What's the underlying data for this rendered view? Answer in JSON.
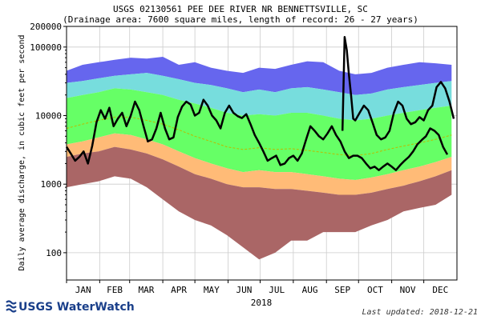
{
  "chart_data": {
    "type": "area",
    "title": "USGS 02130561 PEE DEE RIVER NR BENNETTSVILLE, SC",
    "subtitle": "(Drainage area: 7600 square miles, length of record: 26 - 27 years)",
    "ylabel": "Daily average discharge, in cubic feet per second",
    "xlabel": "2018",
    "yscale": "log",
    "ylim": [
      40,
      200000
    ],
    "yticks": [
      "200000",
      "100000",
      "10000",
      "1000",
      "100"
    ],
    "ytick_values": [
      200000,
      100000,
      10000,
      1000,
      100
    ],
    "months": [
      "JAN",
      "FEB",
      "MAR",
      "APR",
      "MAY",
      "JUN",
      "JUL",
      "AUG",
      "SEP",
      "OCT",
      "NOV",
      "DEC"
    ],
    "grid": true,
    "day_start": 0,
    "day_end": 365,
    "colors": {
      "band_max": "#6666ee",
      "band_p90": "#77dddd",
      "band_p75": "#66ff66",
      "band_p25": "#ffbb77",
      "band_p10": "#aa6666",
      "median": "#bbbb00",
      "observed": "#000000"
    },
    "x": [
      0,
      15,
      30,
      45,
      60,
      75,
      90,
      105,
      120,
      135,
      150,
      165,
      180,
      195,
      210,
      225,
      240,
      255,
      270,
      285,
      300,
      315,
      330,
      345,
      360
    ],
    "percentiles": {
      "max": [
        45000,
        55000,
        60000,
        65000,
        70000,
        68000,
        72000,
        55000,
        60000,
        50000,
        45000,
        42000,
        50000,
        48000,
        55000,
        62000,
        60000,
        45000,
        40000,
        42000,
        50000,
        55000,
        60000,
        58000,
        55000
      ],
      "p90": [
        30000,
        32000,
        35000,
        38000,
        40000,
        42000,
        38000,
        34000,
        30000,
        28000,
        25000,
        22000,
        24000,
        22000,
        25000,
        26000,
        24000,
        22000,
        20000,
        21000,
        24000,
        26000,
        28000,
        30000,
        32000
      ],
      "p75": [
        18000,
        20000,
        22000,
        25000,
        24000,
        22000,
        20000,
        17000,
        15000,
        13000,
        11000,
        10000,
        10500,
        10000,
        11000,
        11000,
        10000,
        9000,
        8500,
        9000,
        10000,
        11000,
        12000,
        13000,
        14000
      ],
      "median": [
        6500,
        7500,
        8500,
        9500,
        9500,
        8500,
        7500,
        6200,
        5000,
        4200,
        3500,
        3200,
        3400,
        3200,
        3300,
        3100,
        2900,
        2700,
        2600,
        2800,
        3200,
        3600,
        4000,
        4500,
        5200
      ],
      "p25": [
        3800,
        4200,
        4800,
        5500,
        5200,
        4500,
        3800,
        3000,
        2400,
        2000,
        1700,
        1500,
        1600,
        1500,
        1500,
        1400,
        1300,
        1200,
        1150,
        1250,
        1400,
        1600,
        1800,
        2100,
        2500
      ],
      "p10": [
        2500,
        2800,
        3000,
        3500,
        3200,
        2800,
        2300,
        1800,
        1400,
        1200,
        1000,
        900,
        900,
        850,
        850,
        800,
        750,
        700,
        700,
        750,
        850,
        950,
        1100,
        1300,
        1600
      ],
      "min": [
        900,
        1000,
        1100,
        1300,
        1200,
        900,
        600,
        400,
        300,
        250,
        180,
        120,
        80,
        100,
        150,
        150,
        200,
        200,
        200,
        250,
        300,
        400,
        450,
        500,
        700
      ]
    },
    "series": [
      {
        "x": [
          0,
          4,
          8,
          12,
          16,
          20,
          24,
          28,
          32,
          36,
          40,
          44,
          48,
          52,
          56,
          60,
          64,
          68,
          72,
          76,
          80,
          84,
          88,
          92,
          96,
          100,
          104,
          108,
          112,
          116,
          120,
          124,
          128,
          132,
          136,
          140,
          144,
          148,
          152,
          156,
          160,
          164,
          168,
          172,
          176,
          180,
          184,
          188,
          192,
          196,
          200,
          204,
          208,
          212,
          216,
          220,
          224,
          228,
          232,
          236,
          240,
          244,
          248,
          252,
          256,
          260,
          264,
          268,
          272,
          276,
          280,
          284,
          288,
          292,
          296,
          300,
          304,
          308,
          312,
          316,
          320,
          324,
          328,
          332,
          336,
          340,
          344,
          348,
          352,
          356
        ],
        "values": [
          3500,
          2800,
          2200,
          2500,
          3000,
          2000,
          3600,
          8000,
          12000,
          9000,
          13000,
          7000,
          9000,
          11000,
          7000,
          10000,
          16000,
          12000,
          7000,
          4200,
          4500,
          6500,
          11000,
          6500,
          4500,
          4800,
          9500,
          13500,
          16000,
          14500,
          10000,
          11000,
          17000,
          14000,
          10000,
          8500,
          6500,
          11000,
          14000,
          11000,
          9800,
          9200,
          10500,
          7500,
          5200,
          4000,
          3000,
          2200,
          2400,
          2600,
          1900,
          2000,
          2400,
          2600,
          2200,
          2800,
          4500,
          7000,
          6000,
          5000,
          4500,
          5500,
          7000,
          5200,
          4200,
          3000,
          2400,
          2600,
          2600,
          2400,
          2000,
          1700,
          1800,
          1600,
          1800,
          2000,
          1800,
          1600,
          1900,
          2200,
          2500,
          3000,
          3800,
          4400,
          5000,
          6500,
          6000,
          5200,
          3500,
          2700
        ]
      },
      {
        "x": [
          258,
          260,
          262,
          264,
          266,
          268,
          270,
          274,
          278,
          282,
          286,
          290,
          294,
          298,
          302,
          306,
          310,
          314,
          318,
          322,
          326,
          330,
          334,
          338,
          342,
          346,
          350,
          354,
          358,
          362
        ],
        "values": [
          6000,
          140000,
          90000,
          40000,
          20000,
          9000,
          8500,
          11000,
          14000,
          12000,
          8000,
          5200,
          4500,
          4800,
          6000,
          11000,
          16000,
          14000,
          9000,
          7500,
          8000,
          9500,
          8500,
          12000,
          14000,
          26000,
          31000,
          25000,
          16000,
          9000
        ]
      }
    ],
    "footer": {
      "logo_text": "USGS WaterWatch",
      "updated": "Last updated: 2018-12-21"
    }
  }
}
